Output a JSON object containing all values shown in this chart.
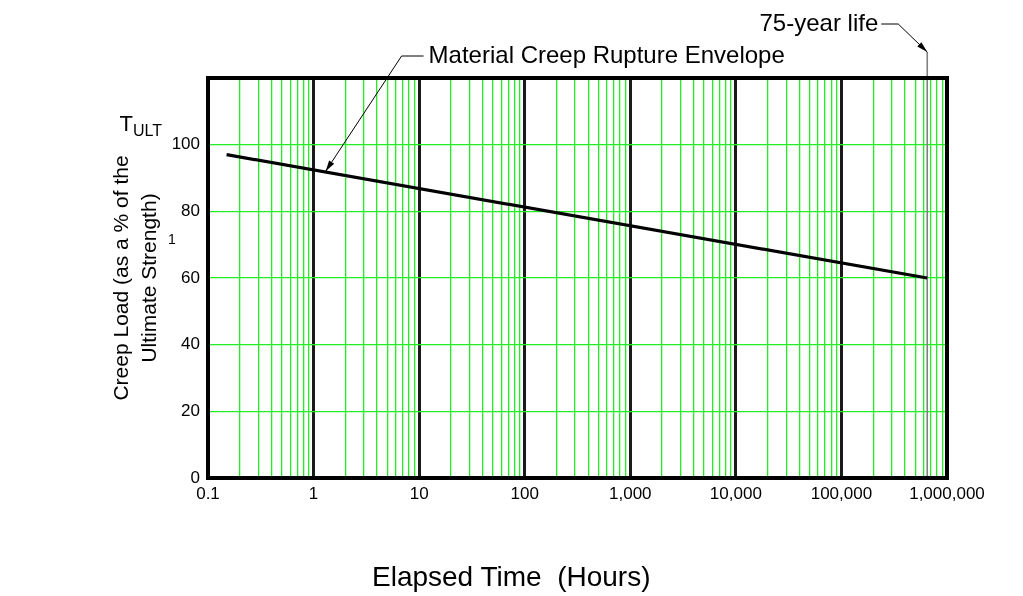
{
  "chart_data": {
    "type": "line",
    "xlabel": "Elapsed Time  (Hours)",
    "ylabel": "Creep Load (as a % of the Ultimate Strength)",
    "x": [
      0.15,
      650000
    ],
    "series": [
      {
        "color": "#000000",
        "values": [
          97,
          60
        ]
      }
    ],
    "log": "x",
    "xlim": [
      0.1,
      1000000
    ],
    "xticks": [
      0.1,
      {
        "value": 0.2,
        "label": null
      },
      {
        "value": 0.3,
        "label": null
      },
      {
        "value": 0.4,
        "label": null
      },
      {
        "value": 0.5,
        "label": null
      },
      {
        "value": 0.6,
        "label": null
      },
      {
        "value": 0.7,
        "label": null
      },
      {
        "value": 0.8,
        "label": null
      },
      {
        "value": 0.9,
        "label": null
      },
      1,
      {
        "value": 2,
        "label": null
      },
      {
        "value": 3,
        "label": null
      },
      {
        "value": 4,
        "label": null
      },
      {
        "value": 5,
        "label": null
      },
      {
        "value": 6,
        "label": null
      },
      {
        "value": 7,
        "label": null
      },
      {
        "value": 8,
        "label": null
      },
      {
        "value": 9,
        "label": null
      },
      10,
      {
        "value": 20,
        "label": null
      },
      {
        "value": 30,
        "label": null
      },
      {
        "value": 40,
        "label": null
      },
      {
        "value": 50,
        "label": null
      },
      {
        "value": 60,
        "label": null
      },
      {
        "value": 70,
        "label": null
      },
      {
        "value": 80,
        "label": null
      },
      {
        "value": 90,
        "label": null
      },
      100,
      {
        "value": 200,
        "label": null
      },
      {
        "value": 300,
        "label": null
      },
      {
        "value": 400,
        "label": null
      },
      {
        "value": 500,
        "label": null
      },
      {
        "value": 600,
        "label": null
      },
      {
        "value": 700,
        "label": null
      },
      {
        "value": 800,
        "label": null
      },
      {
        "value": 900,
        "label": null
      },
      {
        "value": 1000,
        "label": "1,000"
      },
      {
        "value": 2000,
        "label": null
      },
      {
        "value": 3000,
        "label": null
      },
      {
        "value": 4000,
        "label": null
      },
      {
        "value": 5000,
        "label": null
      },
      {
        "value": 6000,
        "label": null
      },
      {
        "value": 7000,
        "label": null
      },
      {
        "value": 8000,
        "label": null
      },
      {
        "value": 9000,
        "label": null
      },
      {
        "value": 10000,
        "label": "10,000"
      },
      {
        "value": 20000,
        "label": null
      },
      {
        "value": 30000,
        "label": null
      },
      {
        "value": 40000,
        "label": null
      },
      {
        "value": 50000,
        "label": null
      },
      {
        "value": 60000,
        "label": null
      },
      {
        "value": 70000,
        "label": null
      },
      {
        "value": 80000,
        "label": null
      },
      {
        "value": 90000,
        "label": null
      },
      {
        "value": 100000,
        "label": "100,000"
      },
      {
        "value": 200000,
        "label": null
      },
      {
        "value": 300000,
        "label": null
      },
      {
        "value": 400000,
        "label": null
      },
      {
        "value": 500000,
        "label": null
      },
      {
        "value": 600000,
        "label": null
      },
      {
        "value": 700000,
        "label": null
      },
      {
        "value": 800000,
        "label": null
      },
      {
        "value": 900000,
        "label": null
      },
      {
        "value": 1000000,
        "label": "1,000,000"
      }
    ],
    "ylim": [
      0,
      120
    ],
    "yticks": [
      0,
      20,
      40,
      60,
      80,
      100
    ],
    "grid": true,
    "ref_lines": [
      {
        "axis": "x",
        "value": 650000,
        "label": "75-year life",
        "color": "#808080"
      }
    ],
    "annotations": [
      {
        "text": "Material Creep Rupture Envelope",
        "x": 1.3,
        "y": 92
      },
      "T$_{ULT}$",
      "1"
    ]
  }
}
